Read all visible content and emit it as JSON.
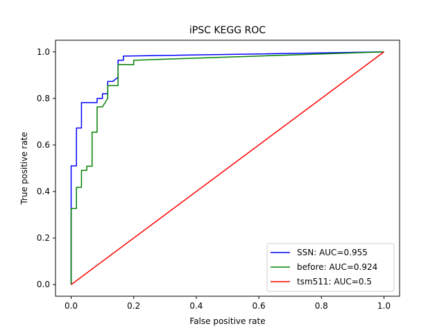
{
  "chart_data": {
    "type": "line",
    "title": "iPSC KEGG ROC",
    "xlabel": "False positive rate",
    "ylabel": "True positive rate",
    "xlim": [
      -0.05,
      1.05
    ],
    "ylim": [
      -0.05,
      1.05
    ],
    "xticks": [
      "0.0",
      "0.2",
      "0.4",
      "0.6",
      "0.8",
      "1.0"
    ],
    "yticks": [
      "0.0",
      "0.2",
      "0.4",
      "0.6",
      "0.8",
      "1.0"
    ],
    "grid": false,
    "legend_position": "lower-right",
    "series": [
      {
        "name": "SSN: AUC=0.955",
        "color": "#0000ff",
        "x": [
          0,
          0,
          0.017,
          0.017,
          0.033,
          0.033,
          0.083,
          0.083,
          0.1,
          0.1,
          0.117,
          0.117,
          0.133,
          0.15,
          0.15,
          0.167,
          0.167,
          0.183,
          0.183,
          1.0
        ],
        "y": [
          0,
          0.51,
          0.51,
          0.673,
          0.673,
          0.782,
          0.782,
          0.8,
          0.8,
          0.82,
          0.82,
          0.873,
          0.873,
          0.891,
          0.964,
          0.964,
          0.982,
          0.982,
          0.982,
          1.0
        ]
      },
      {
        "name": "before: AUC=0.924",
        "color": "#008000",
        "x": [
          0,
          0,
          0.017,
          0.017,
          0.033,
          0.033,
          0.05,
          0.05,
          0.067,
          0.067,
          0.083,
          0.083,
          0.1,
          0.1,
          0.117,
          0.117,
          0.15,
          0.15,
          0.2,
          0.2,
          1.0
        ],
        "y": [
          0,
          0.327,
          0.327,
          0.418,
          0.418,
          0.491,
          0.491,
          0.509,
          0.509,
          0.655,
          0.655,
          0.764,
          0.764,
          0.764,
          0.8,
          0.855,
          0.855,
          0.945,
          0.945,
          0.964,
          1.0
        ]
      },
      {
        "name": "tsm511: AUC=0.5",
        "color": "#ff0000",
        "x": [
          0,
          1.0
        ],
        "y": [
          0,
          1.0
        ]
      }
    ]
  }
}
